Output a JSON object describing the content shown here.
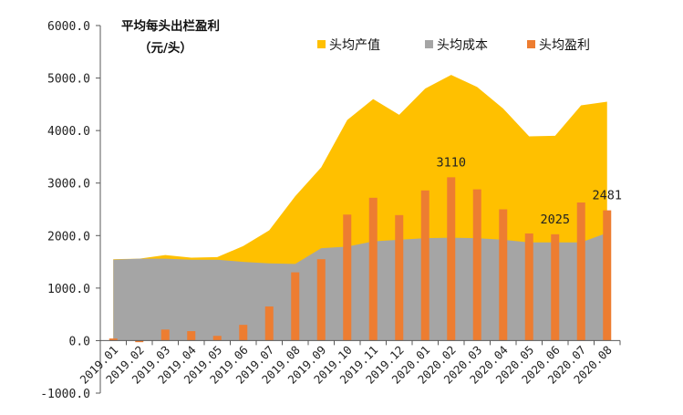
{
  "chart_data": {
    "type": "bar",
    "title": "平均每头出栏盈利",
    "subtitle": "（元/头）",
    "categories": [
      "2019.01",
      "2019.02",
      "2019.03",
      "2019.04",
      "2019.05",
      "2019.06",
      "2019.07",
      "2019.08",
      "2019.09",
      "2019.10",
      "2019.11",
      "2019.12",
      "2020.01",
      "2020.02",
      "2020.03",
      "2020.04",
      "2020.05",
      "2020.06",
      "2020.07",
      "2020.08"
    ],
    "series": [
      {
        "name": "头均产值",
        "type": "area",
        "color": "#FFC000",
        "values": [
          1550,
          1560,
          1630,
          1580,
          1590,
          1800,
          2100,
          2750,
          3300,
          4200,
          4600,
          4300,
          4800,
          5060,
          4830,
          4420,
          3890,
          3900,
          4480,
          4550
        ]
      },
      {
        "name": "头均成本",
        "type": "area",
        "color": "#A5A5A5",
        "values": [
          1540,
          1560,
          1560,
          1540,
          1540,
          1500,
          1470,
          1460,
          1760,
          1790,
          1890,
          1920,
          1950,
          1960,
          1950,
          1920,
          1870,
          1870,
          1870,
          2050
        ]
      },
      {
        "name": "头均盈利",
        "type": "bar",
        "color": "#ED7D31",
        "values": [
          40,
          -30,
          210,
          180,
          90,
          300,
          650,
          1300,
          1550,
          2400,
          2720,
          2390,
          2860,
          3110,
          2880,
          2500,
          2040,
          2025,
          2630,
          2481
        ]
      }
    ],
    "data_labels": [
      {
        "category": "2020.02",
        "text": "3110"
      },
      {
        "category": "2020.06",
        "text": "2025"
      },
      {
        "category": "2020.08",
        "text": "2481"
      }
    ],
    "yticks": [
      "6000.0",
      "5000.0",
      "4000.0",
      "3000.0",
      "2000.0",
      "1000.0",
      "0.0",
      "-1000.0"
    ],
    "ylim": [
      -1000,
      6000
    ],
    "xlabel": "",
    "ylabel": "",
    "legend_position": "top-right",
    "grid": false
  }
}
